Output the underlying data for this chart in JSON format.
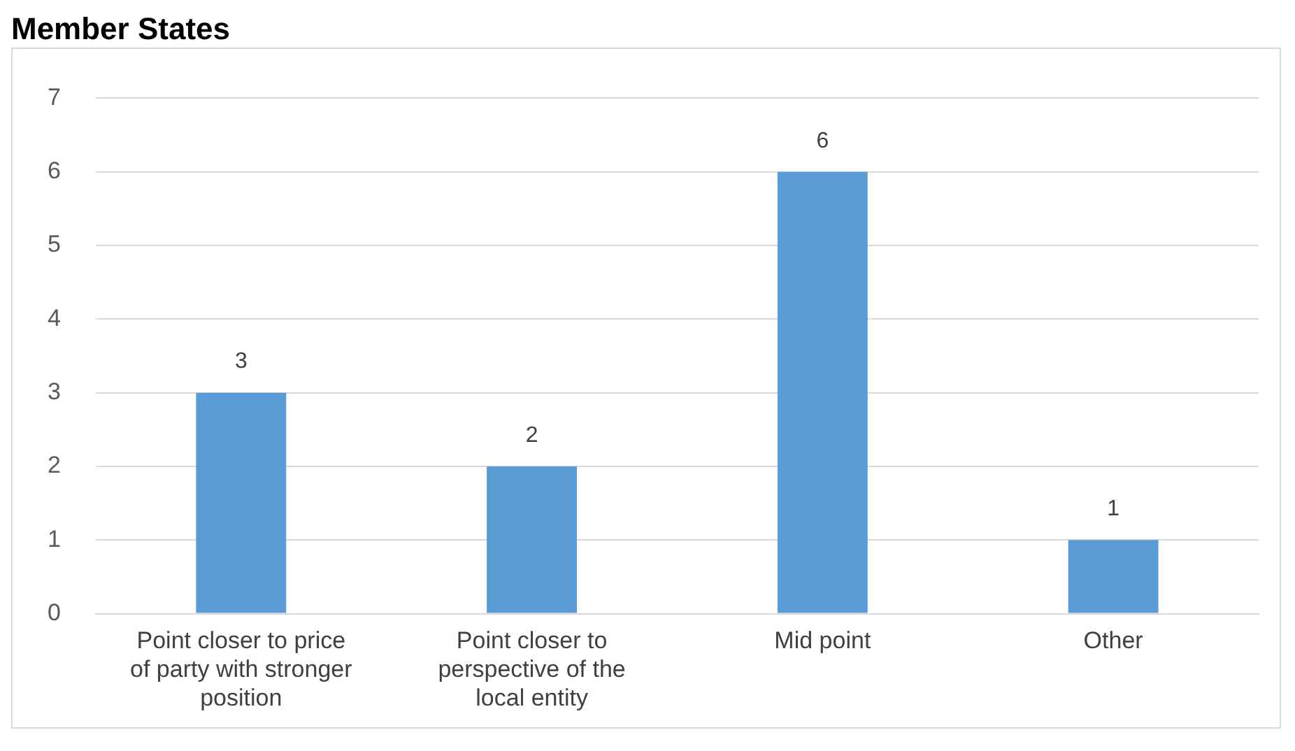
{
  "chart_data": {
    "type": "bar",
    "title": "Member States",
    "categories": [
      "Point closer to price of party with stronger position",
      "Point closer to perspective of the local entity",
      "Mid point",
      "Other"
    ],
    "values": [
      3,
      2,
      6,
      1
    ],
    "color": "#5b9bd5",
    "ylim": [
      0,
      7
    ],
    "yticks": [
      0,
      1,
      2,
      3,
      4,
      5,
      6,
      7
    ],
    "grid": "y",
    "data_labels": true
  }
}
